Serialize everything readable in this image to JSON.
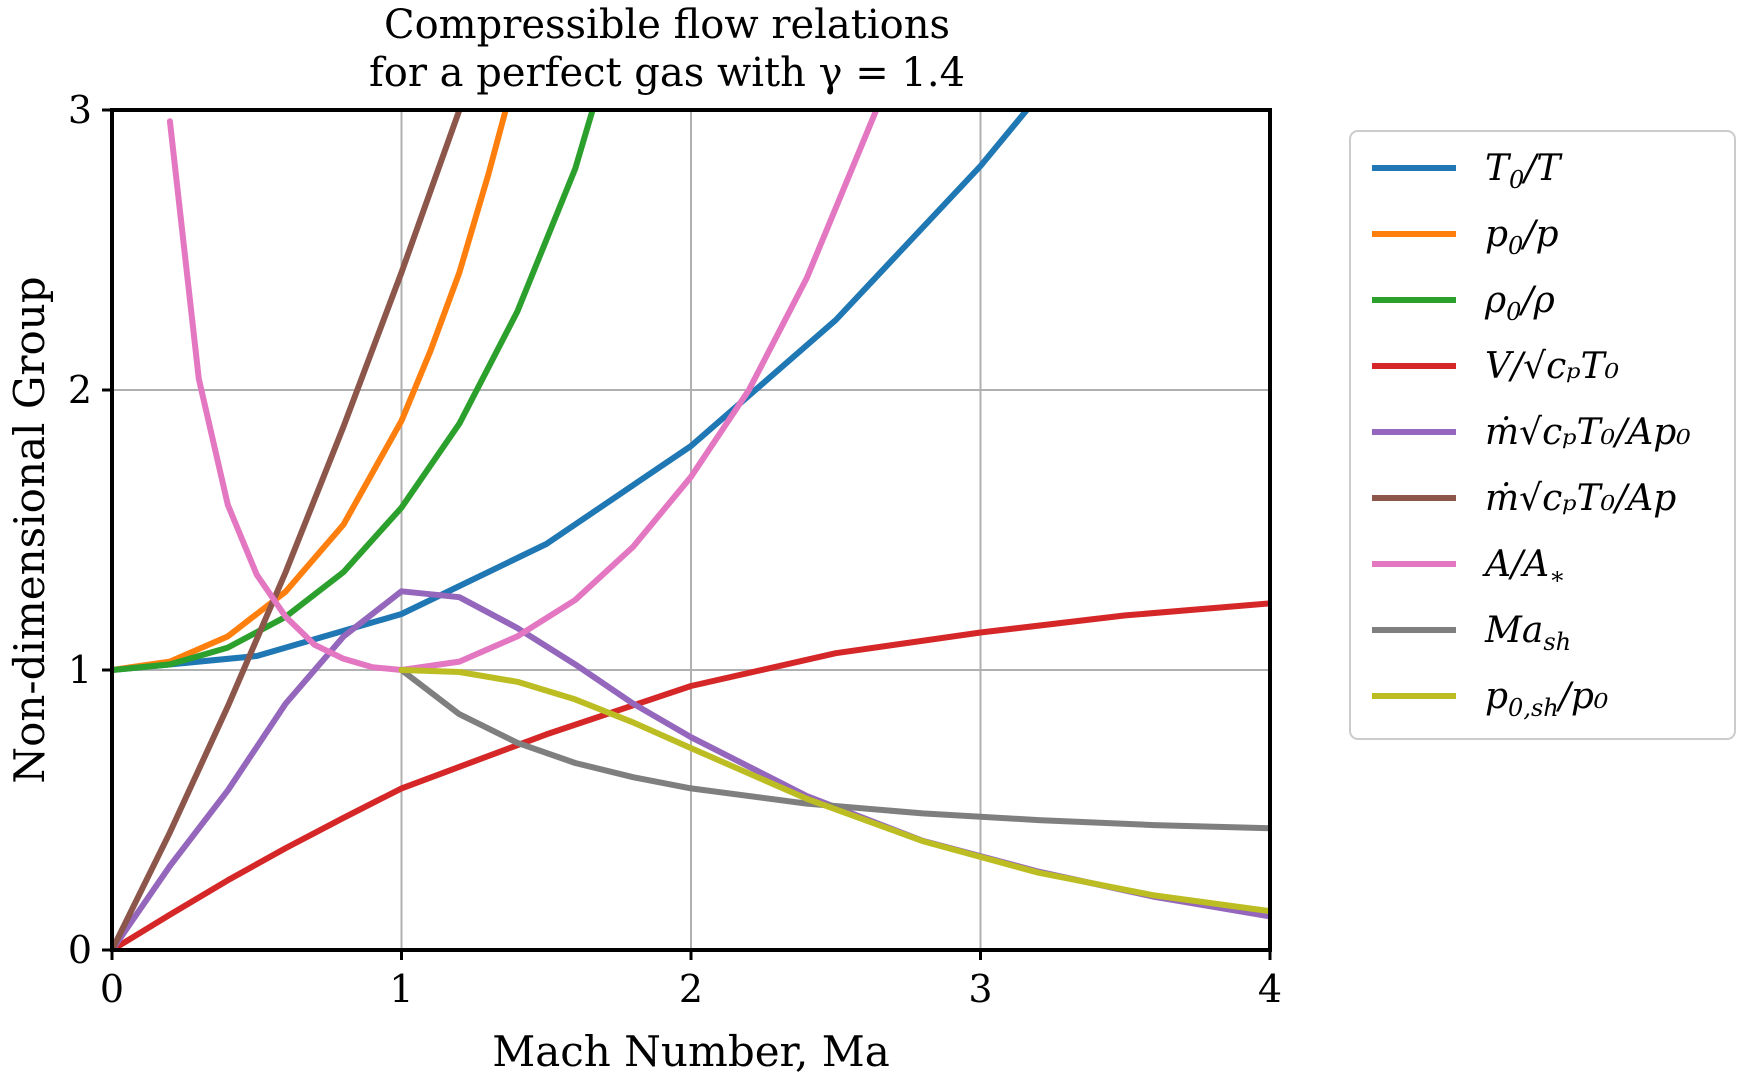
{
  "chart_data": {
    "type": "line",
    "title_lines": [
      "Compressible flow relations",
      "for a perfect gas with γ = 1.4"
    ],
    "xlabel": "Mach Number, Ma",
    "ylabel": "Non-dimensional Group",
    "xlim": [
      0,
      4
    ],
    "ylim": [
      0,
      3
    ],
    "xticks": [
      "0",
      "1",
      "2",
      "3",
      "4"
    ],
    "yticks": [
      "0",
      "1",
      "2",
      "3"
    ],
    "grid": true,
    "legend_position": "outside-right",
    "gamma": 1.4,
    "x": [
      0,
      0.1,
      0.2,
      0.3,
      0.4,
      0.5,
      0.6,
      0.7,
      0.8,
      0.9,
      1.0,
      1.2,
      1.4,
      1.6,
      1.8,
      2.0,
      2.2,
      2.4,
      2.6,
      2.8,
      3.0,
      3.2,
      3.4,
      3.6,
      3.8,
      4.0
    ],
    "series": [
      {
        "name": "T₀/T",
        "color": "#1f77b4",
        "x": [
          0,
          0.5,
          1.0,
          1.5,
          2.0,
          2.5,
          3.0,
          3.16
        ],
        "values": [
          1.0,
          1.05,
          1.2,
          1.45,
          1.8,
          2.25,
          2.8,
          3.0
        ]
      },
      {
        "name": "p₀/p",
        "color": "#ff7f0e",
        "x": [
          0,
          0.2,
          0.4,
          0.6,
          0.8,
          1.0,
          1.1,
          1.2,
          1.3,
          1.36
        ],
        "values": [
          1.0,
          1.03,
          1.12,
          1.28,
          1.52,
          1.89,
          2.14,
          2.42,
          2.77,
          3.0
        ]
      },
      {
        "name": "ρ₀/ρ",
        "color": "#2ca02c",
        "x": [
          0,
          0.2,
          0.4,
          0.6,
          0.8,
          1.0,
          1.2,
          1.4,
          1.6,
          1.66
        ],
        "values": [
          1.0,
          1.02,
          1.08,
          1.19,
          1.35,
          1.58,
          1.88,
          2.28,
          2.79,
          3.0
        ]
      },
      {
        "name": "V/√(cₚT₀)",
        "color": "#d62728",
        "x": [
          0,
          0.2,
          0.4,
          0.6,
          0.8,
          1.0,
          1.5,
          2.0,
          2.5,
          3.0,
          3.5,
          4.0
        ],
        "values": [
          0,
          0.126,
          0.249,
          0.364,
          0.472,
          0.577,
          0.77,
          0.943,
          1.06,
          1.134,
          1.195,
          1.238
        ]
      },
      {
        "name": "ṁ√(cₚT₀)/Ap₀",
        "color": "#9467bd",
        "x": [
          0,
          0.2,
          0.4,
          0.6,
          0.8,
          1.0,
          1.2,
          1.4,
          1.6,
          1.8,
          2.0,
          2.4,
          2.8,
          3.2,
          3.6,
          4.0
        ],
        "values": [
          0,
          0.3,
          0.57,
          0.88,
          1.12,
          1.281,
          1.26,
          1.15,
          1.02,
          0.88,
          0.76,
          0.55,
          0.39,
          0.28,
          0.19,
          0.12
        ]
      },
      {
        "name": "ṁ√(cₚT₀)/Ap",
        "color": "#8c564b",
        "x": [
          0,
          0.2,
          0.4,
          0.6,
          0.8,
          1.0,
          1.2
        ],
        "values": [
          0,
          0.42,
          0.87,
          1.35,
          1.87,
          2.42,
          3.0
        ]
      },
      {
        "name": "A/A∗",
        "color": "#e377c2",
        "x": [
          0.2,
          0.3,
          0.4,
          0.5,
          0.6,
          0.7,
          0.8,
          0.9,
          1.0,
          1.2,
          1.4,
          1.6,
          1.8,
          2.0,
          2.2,
          2.4,
          2.64
        ],
        "values": [
          2.96,
          2.04,
          1.59,
          1.34,
          1.19,
          1.09,
          1.04,
          1.01,
          1.0,
          1.03,
          1.12,
          1.25,
          1.44,
          1.69,
          2.0,
          2.4,
          3.0
        ]
      },
      {
        "name": "Ma_sh",
        "color": "#7f7f7f",
        "x": [
          1.0,
          1.2,
          1.4,
          1.6,
          1.8,
          2.0,
          2.4,
          2.8,
          3.2,
          3.6,
          4.0
        ],
        "values": [
          1.0,
          0.842,
          0.74,
          0.668,
          0.617,
          0.577,
          0.523,
          0.488,
          0.464,
          0.446,
          0.435
        ]
      },
      {
        "name": "p₀,sh/p₀",
        "color": "#bcbd22",
        "x": [
          1.0,
          1.2,
          1.4,
          1.6,
          1.8,
          2.0,
          2.4,
          2.8,
          3.2,
          3.6,
          4.0
        ],
        "values": [
          1.0,
          0.993,
          0.958,
          0.895,
          0.813,
          0.721,
          0.54,
          0.389,
          0.276,
          0.195,
          0.139
        ]
      }
    ]
  },
  "legend_labels": [
    {
      "base": "T",
      "sub": "0",
      "rest": "/T"
    },
    {
      "base": "p",
      "sub": "0",
      "rest": "/p"
    },
    {
      "base": "ρ",
      "sub": "0",
      "rest": "/ρ"
    },
    {
      "base": "V/√",
      "sub": "",
      "rest": "cₚT₀"
    },
    {
      "base": "ṁ√",
      "sub": "",
      "rest": "cₚT₀/Ap₀"
    },
    {
      "base": "ṁ√",
      "sub": "",
      "rest": "cₚT₀/Ap"
    },
    {
      "base": "A/A",
      "sub": "∗",
      "rest": ""
    },
    {
      "base": "Ma",
      "sub": "sh",
      "rest": ""
    },
    {
      "base": "p",
      "sub": "0,sh",
      "rest": "/p₀"
    }
  ]
}
